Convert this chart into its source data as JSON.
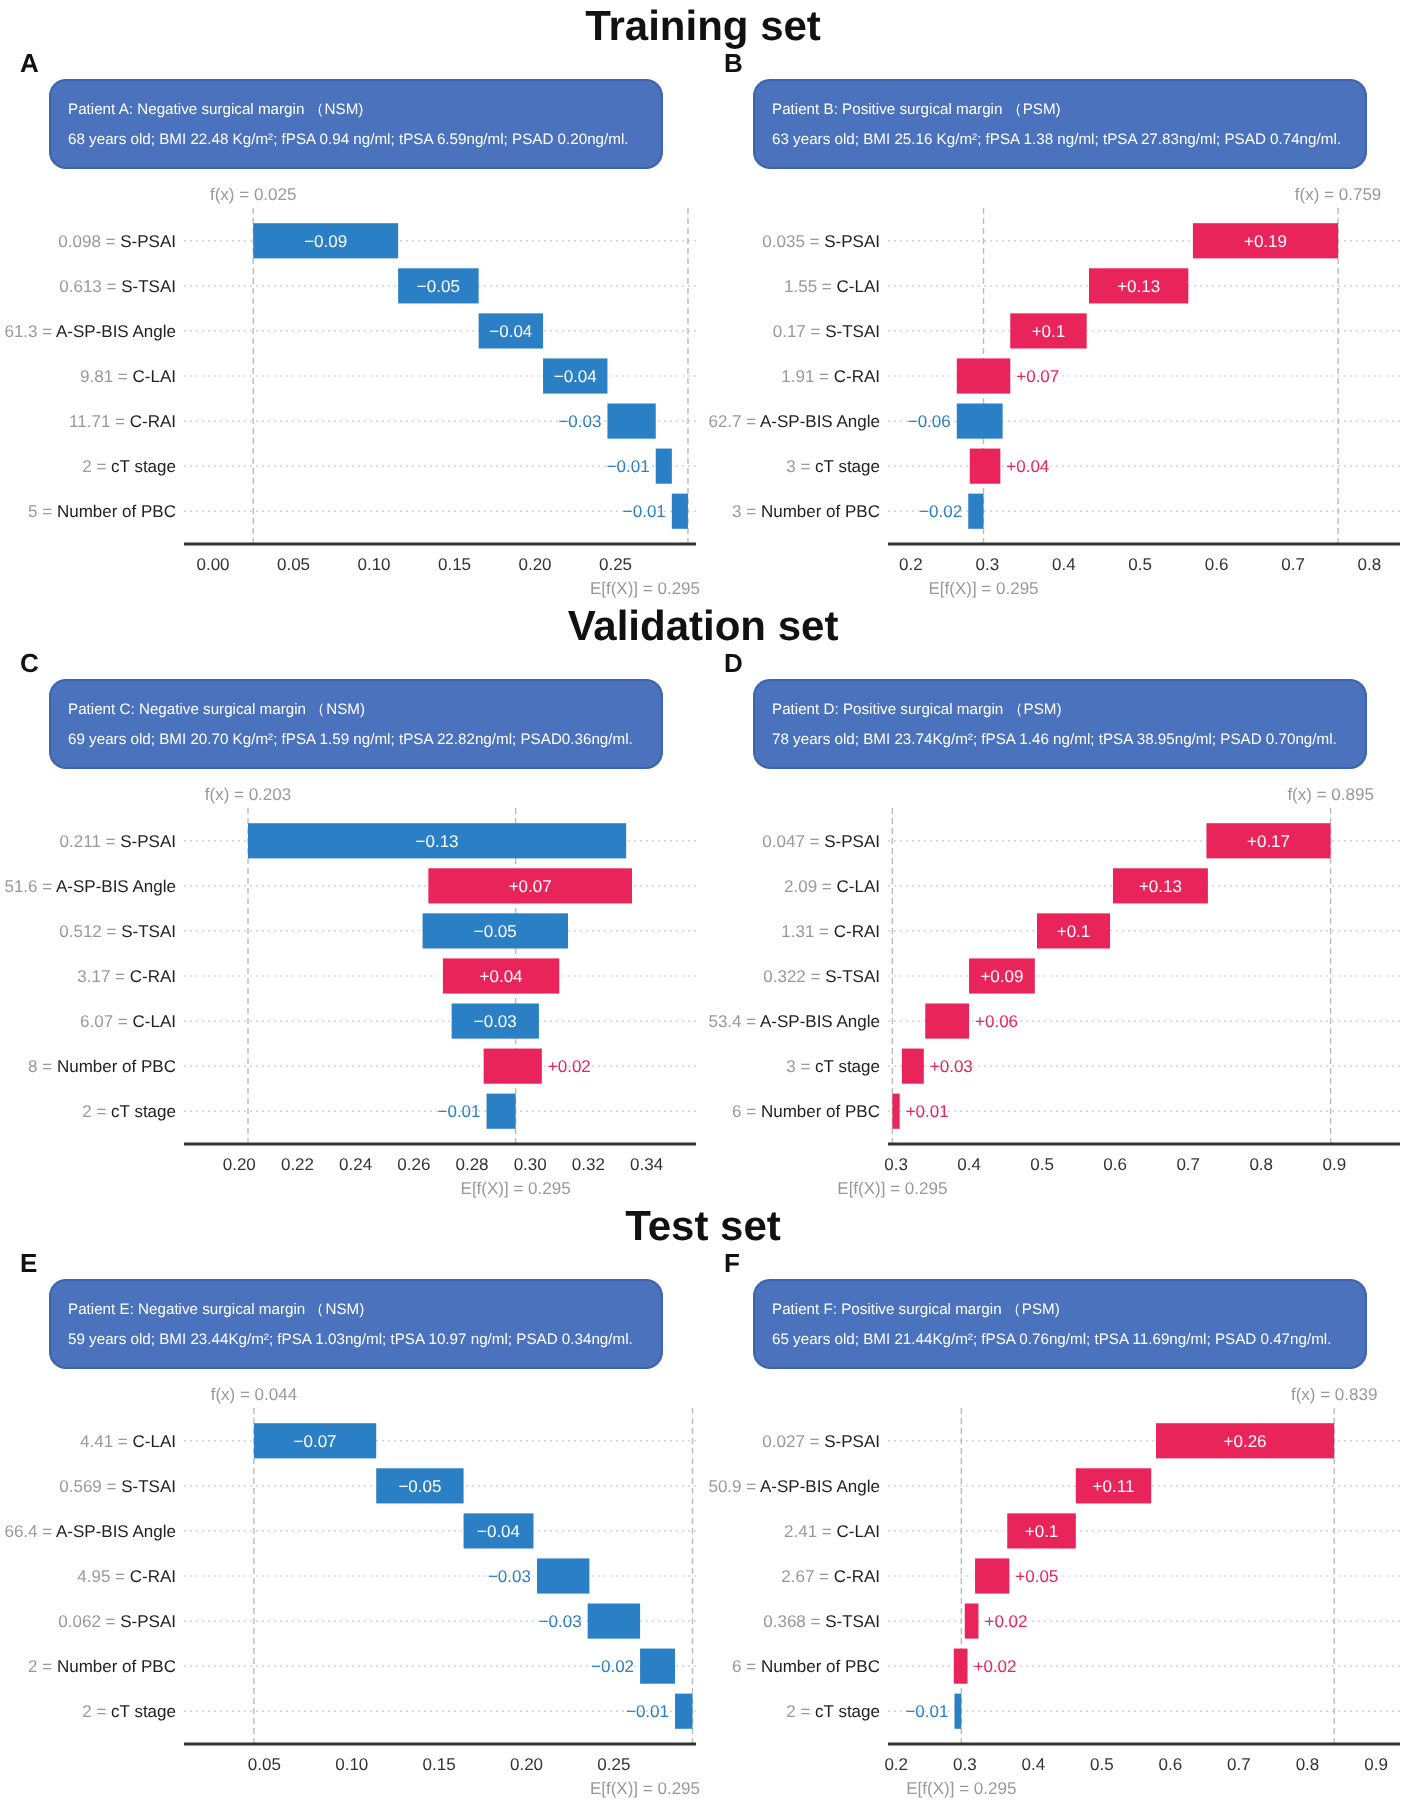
{
  "chart_data": [
    {
      "type": "bar",
      "orientation": "horizontal",
      "title": "Training set",
      "grid": "y",
      "annotations": [
        "A",
        "Patient A: Negative surgical margin （NSM)",
        "68 years old; BMI 22.48 Kg/m²; fPSA 0.94 ng/ml; tPSA 6.59ng/ml; PSAD 0.20ng/ml."
      ],
      "categories": [
        "0.098 = S-PSAI",
        "0.613 = S-TSAI",
        "61.3 = A-SP-BIS Angle",
        "9.81 = C-LAI",
        "11.71 = C-RAI",
        "2 = cT stage",
        "5 = Number of PBC"
      ],
      "values": [
        -0.09,
        -0.05,
        -0.04,
        -0.04,
        -0.03,
        -0.01,
        -0.01
      ],
      "base": [
        0.115,
        0.165,
        0.205,
        0.245,
        0.275,
        0.285,
        0.295
      ],
      "colors": [
        "#2b7fc4",
        "#2b7fc4",
        "#2b7fc4",
        "#2b7fc4",
        "#2b7fc4",
        "#2b7fc4",
        "#2b7fc4"
      ],
      "value_labels": [
        "−0.09",
        "−0.05",
        "−0.04",
        "−0.04",
        "−0.03",
        "−0.01",
        "−0.01"
      ],
      "xlim": [
        -0.018,
        0.3
      ],
      "xticks": [
        {
          "value": 0,
          "label": "0.00"
        },
        {
          "value": 0.05,
          "label": "0.05"
        },
        {
          "value": 0.1,
          "label": "0.10"
        },
        {
          "value": 0.15,
          "label": "0.15"
        },
        {
          "value": 0.2,
          "label": "0.20"
        },
        {
          "value": 0.25,
          "label": "0.25"
        }
      ],
      "ref_lines": [
        {
          "axis": "x",
          "value": 0.025,
          "label": "f(x) = 0.025"
        },
        {
          "axis": "x",
          "value": 0.295,
          "label": "E[f(X)] = 0.295"
        }
      ]
    },
    {
      "type": "bar",
      "orientation": "horizontal",
      "grid": "y",
      "annotations": [
        "B",
        "Patient B: Positive surgical margin （PSM)",
        "63 years old; BMI 25.16 Kg/m²; fPSA 1.38 ng/ml; tPSA 27.83ng/ml; PSAD 0.74ng/ml."
      ],
      "categories": [
        "0.035 = S-PSAI",
        "1.55 = C-LAI",
        "0.17 = S-TSAI",
        "1.91 = C-RAI",
        "62.7 = A-SP-BIS Angle",
        "3 = cT stage",
        "3 = Number of PBC"
      ],
      "values": [
        0.19,
        0.13,
        0.1,
        0.07,
        -0.06,
        0.04,
        -0.02
      ],
      "base": [
        0.569,
        0.433,
        0.33,
        0.26,
        0.32,
        0.277,
        0.295
      ],
      "colors": [
        "#e8245b",
        "#e8245b",
        "#e8245b",
        "#e8245b",
        "#2b7fc4",
        "#e8245b",
        "#2b7fc4"
      ],
      "value_labels": [
        "+0.19",
        "+0.13",
        "+0.1",
        "+0.07",
        "−0.06",
        "+0.04",
        "−0.02"
      ],
      "xlim": [
        0.17,
        0.84
      ],
      "xticks": [
        0.2,
        0.3,
        0.4,
        0.5,
        0.6,
        0.7,
        0.8
      ],
      "ref_lines": [
        {
          "axis": "x",
          "value": 0.759,
          "label": "f(x) = 0.759"
        },
        {
          "axis": "x",
          "value": 0.295,
          "label": "E[f(X)] = 0.295"
        }
      ]
    },
    {
      "type": "bar",
      "orientation": "horizontal",
      "title": "Validation set",
      "grid": "y",
      "annotations": [
        "C",
        "Patient C: Negative surgical margin （NSM)",
        "69 years old; BMI 20.70 Kg/m²; fPSA 1.59 ng/ml; tPSA 22.82ng/ml; PSAD0.36ng/ml."
      ],
      "categories": [
        "0.211 = S-PSAI",
        "51.6 = A-SP-BIS Angle",
        "0.512 = S-TSAI",
        "3.17 = C-RAI",
        "6.07 = C-LAI",
        "8 = Number of PBC",
        "2 = cT stage"
      ],
      "values": [
        -0.13,
        0.07,
        -0.05,
        0.04,
        -0.03,
        0.02,
        -0.01
      ],
      "base": [
        0.333,
        0.265,
        0.313,
        0.27,
        0.303,
        0.284,
        0.295
      ],
      "colors": [
        "#2b7fc4",
        "#e8245b",
        "#2b7fc4",
        "#e8245b",
        "#2b7fc4",
        "#e8245b",
        "#2b7fc4"
      ],
      "value_labels": [
        "−0.13",
        "+0.07",
        "−0.05",
        "+0.04",
        "−0.03",
        "+0.02",
        "−0.01"
      ],
      "xlim": [
        0.181,
        0.357
      ],
      "xticks": [
        {
          "value": 0.2,
          "label": "0.20"
        },
        {
          "value": 0.22,
          "label": "0.22"
        },
        {
          "value": 0.24,
          "label": "0.24"
        },
        {
          "value": 0.26,
          "label": "0.26"
        },
        {
          "value": 0.28,
          "label": "0.28"
        },
        {
          "value": 0.3,
          "label": "0.30"
        },
        {
          "value": 0.32,
          "label": "0.32"
        },
        {
          "value": 0.34,
          "label": "0.34"
        }
      ],
      "ref_lines": [
        {
          "axis": "x",
          "value": 0.203,
          "label": "f(x) = 0.203"
        },
        {
          "axis": "x",
          "value": 0.295,
          "label": "E[f(X)] = 0.295"
        }
      ]
    },
    {
      "type": "bar",
      "orientation": "horizontal",
      "grid": "y",
      "annotations": [
        "D",
        "Patient D: Positive surgical margin （PSM)",
        "78 years old; BMI 23.74Kg/m²; fPSA 1.46 ng/ml; tPSA 38.95ng/ml; PSAD 0.70ng/ml."
      ],
      "categories": [
        "0.047 = S-PSAI",
        "2.09 = C-LAI",
        "1.31 = C-RAI",
        "0.322 = S-TSAI",
        "53.4 = A-SP-BIS Angle",
        "3 = cT stage",
        "6 = Number of PBC"
      ],
      "values": [
        0.17,
        0.13,
        0.1,
        0.09,
        0.06,
        0.03,
        0.01
      ],
      "base": [
        0.725,
        0.597,
        0.493,
        0.4,
        0.34,
        0.308,
        0.295
      ],
      "colors": [
        "#e8245b",
        "#e8245b",
        "#e8245b",
        "#e8245b",
        "#e8245b",
        "#e8245b",
        "#e8245b"
      ],
      "value_labels": [
        "+0.17",
        "+0.13",
        "+0.1",
        "+0.09",
        "+0.06",
        "+0.03",
        "+0.01"
      ],
      "xlim": [
        0.289,
        0.99
      ],
      "xticks": [
        0.3,
        0.4,
        0.5,
        0.6,
        0.7,
        0.8,
        0.9
      ],
      "ref_lines": [
        {
          "axis": "x",
          "value": 0.895,
          "label": "f(x) = 0.895"
        },
        {
          "axis": "x",
          "value": 0.295,
          "label": "E[f(X)] = 0.295"
        }
      ]
    },
    {
      "type": "bar",
      "orientation": "horizontal",
      "title": "Test set",
      "grid": "y",
      "annotations": [
        "E",
        "Patient E: Negative surgical margin （NSM)",
        "59 years old; BMI 23.44Kg/m²; fPSA 1.03ng/ml; tPSA 10.97 ng/ml; PSAD 0.34ng/ml."
      ],
      "categories": [
        "4.41 = C-LAI",
        "0.569 = S-TSAI",
        "66.4 = A-SP-BIS Angle",
        "4.95 = C-RAI",
        "0.062 = S-PSAI",
        "2 = Number of PBC",
        "2 = cT stage"
      ],
      "values": [
        -0.07,
        -0.05,
        -0.04,
        -0.03,
        -0.03,
        -0.02,
        -0.01
      ],
      "base": [
        0.114,
        0.164,
        0.204,
        0.236,
        0.265,
        0.285,
        0.295
      ],
      "colors": [
        "#2b7fc4",
        "#2b7fc4",
        "#2b7fc4",
        "#2b7fc4",
        "#2b7fc4",
        "#2b7fc4",
        "#2b7fc4"
      ],
      "value_labels": [
        "−0.07",
        "−0.05",
        "−0.04",
        "−0.03",
        "−0.03",
        "−0.02",
        "−0.01"
      ],
      "xlim": [
        0.004,
        0.297
      ],
      "xticks": [
        {
          "value": 0.05,
          "label": "0.05"
        },
        {
          "value": 0.1,
          "label": "0.10"
        },
        {
          "value": 0.15,
          "label": "0.15"
        },
        {
          "value": 0.2,
          "label": "0.20"
        },
        {
          "value": 0.25,
          "label": "0.25"
        }
      ],
      "ref_lines": [
        {
          "axis": "x",
          "value": 0.044,
          "label": "f(x) = 0.044"
        },
        {
          "axis": "x",
          "value": 0.295,
          "label": "E[f(X)] = 0.295"
        }
      ]
    },
    {
      "type": "bar",
      "orientation": "horizontal",
      "grid": "y",
      "annotations": [
        "F",
        "Patient F: Positive surgical margin （PSM)",
        "65 years old; BMI 21.44Kg/m²; fPSA 0.76ng/ml; tPSA 11.69ng/ml; PSAD 0.47ng/ml."
      ],
      "categories": [
        "0.027 = S-PSAI",
        "50.9 = A-SP-BIS Angle",
        "2.41 = C-LAI",
        "2.67 = C-RAI",
        "0.368 = S-TSAI",
        "6 = Number of PBC",
        "2 = cT stage"
      ],
      "values": [
        0.26,
        0.11,
        0.1,
        0.05,
        0.02,
        0.02,
        -0.01
      ],
      "base": [
        0.579,
        0.462,
        0.362,
        0.315,
        0.3,
        0.284,
        0.295
      ],
      "colors": [
        "#e8245b",
        "#e8245b",
        "#e8245b",
        "#e8245b",
        "#e8245b",
        "#e8245b",
        "#2b7fc4"
      ],
      "value_labels": [
        "+0.26",
        "+0.11",
        "+0.1",
        "+0.05",
        "+0.02",
        "+0.02",
        "−0.01"
      ],
      "xlim": [
        0.188,
        0.935
      ],
      "xticks": [
        0.2,
        0.3,
        0.4,
        0.5,
        0.6,
        0.7,
        0.8,
        0.9
      ],
      "ref_lines": [
        {
          "axis": "x",
          "value": 0.839,
          "label": "f(x) = 0.839"
        },
        {
          "axis": "x",
          "value": 0.295,
          "label": "E[f(X)] = 0.295"
        }
      ]
    }
  ]
}
